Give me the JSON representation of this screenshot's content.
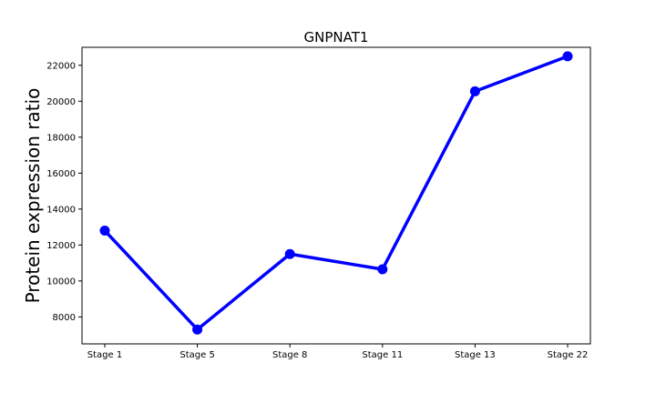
{
  "chart_data": {
    "type": "line",
    "title": "GNPNAT1",
    "xlabel": "",
    "ylabel": "Protein expression ratio",
    "categories": [
      "Stage 1",
      "Stage 5",
      "Stage 8",
      "Stage 11",
      "Stage 13",
      "Stage 22"
    ],
    "series": [
      {
        "values": [
          12800,
          7300,
          11500,
          10650,
          20550,
          22500
        ],
        "color": "#0000ff"
      }
    ],
    "ylim": [
      6500,
      23000
    ],
    "yticks": [
      8000,
      10000,
      12000,
      14000,
      16000,
      18000,
      20000,
      22000
    ],
    "grid": false,
    "markers": "circle"
  }
}
